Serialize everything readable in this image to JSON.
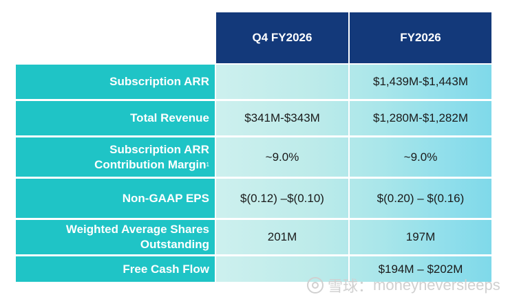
{
  "header": {
    "col1": "Q4 FY2026",
    "col2": "FY2026"
  },
  "rows": [
    {
      "label_lines": [
        "Subscription ARR"
      ],
      "q4": "",
      "fy": "$1,439M-$1,443M"
    },
    {
      "label_lines": [
        "Total Revenue"
      ],
      "q4": "$341M-$343M",
      "fy": "$1,280M-$1,282M"
    },
    {
      "label_lines": [
        "Subscription ARR",
        "Contribution Margin"
      ],
      "footnote": "1",
      "q4": "~9.0%",
      "fy": "~9.0%"
    },
    {
      "label_lines": [
        "Non-GAAP EPS"
      ],
      "q4": "$(0.12) –$(0.10)",
      "fy": "$(0.20) – $(0.16)"
    },
    {
      "label_lines": [
        "Weighted Average Shares",
        "Outstanding"
      ],
      "q4": "201M",
      "fy": "197M"
    },
    {
      "label_lines": [
        "Free Cash Flow"
      ],
      "q4": "",
      "fy": "$194M – $202M"
    }
  ],
  "watermark": {
    "brand": "雪球",
    "separator": "：",
    "user": "moneyneversleeps"
  },
  "colors": {
    "header_bg": "#13397a",
    "label_bg": "#1fc4c6"
  }
}
